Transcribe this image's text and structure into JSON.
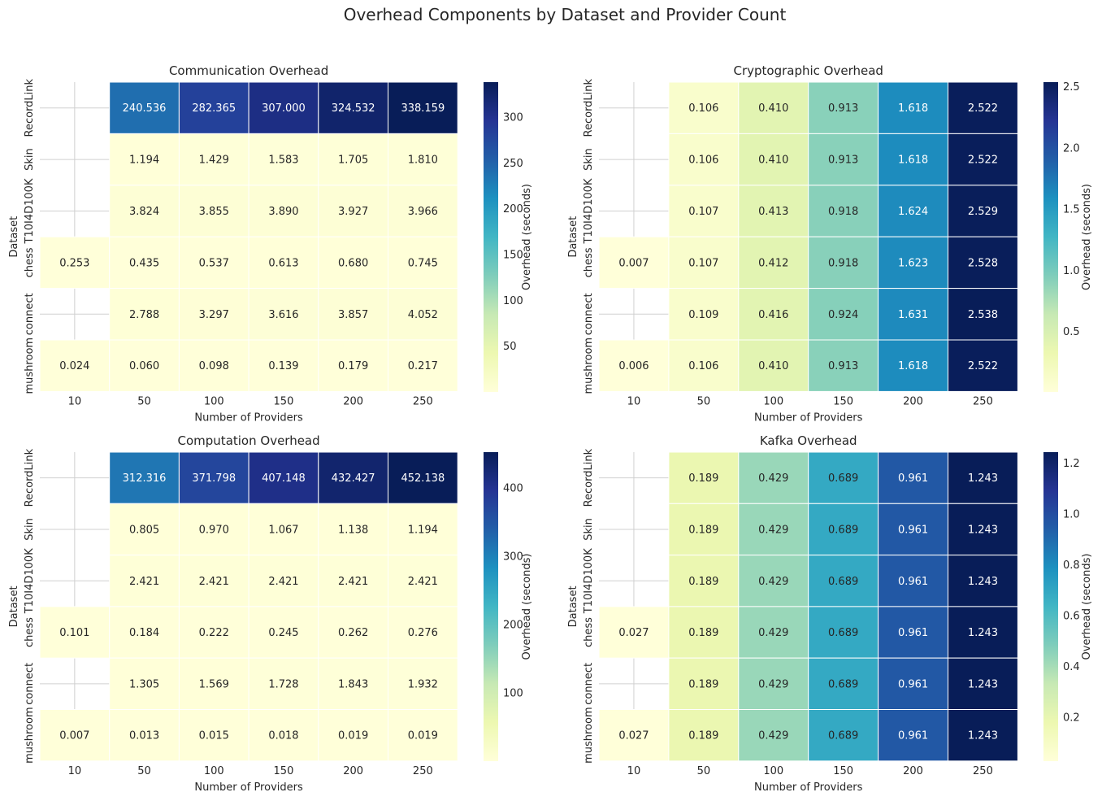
{
  "suptitle": "Overhead Components by Dataset and Provider Count",
  "chart_data": [
    {
      "type": "heatmap",
      "title": "Communication Overhead",
      "xlabel": "Number of Providers",
      "ylabel": "Dataset",
      "colorbar_label": "Overhead (seconds)",
      "colormap": "YlGnBu",
      "x": [
        "10",
        "50",
        "100",
        "150",
        "200",
        "250"
      ],
      "y": [
        "RecordLink",
        "Skin",
        "T10I4D100K",
        "chess",
        "connect",
        "mushroom"
      ],
      "values": [
        [
          null,
          240.536,
          282.365,
          307.0,
          324.532,
          338.159
        ],
        [
          null,
          1.194,
          1.429,
          1.583,
          1.705,
          1.81
        ],
        [
          null,
          3.824,
          3.855,
          3.89,
          3.927,
          3.966
        ],
        [
          0.253,
          0.435,
          0.537,
          0.613,
          0.68,
          0.745
        ],
        [
          null,
          2.788,
          3.297,
          3.616,
          3.857,
          4.052
        ],
        [
          0.024,
          0.06,
          0.098,
          0.139,
          0.179,
          0.217
        ]
      ],
      "vmin": 0.024,
      "vmax": 338.159,
      "colorbar_ticks": [
        50,
        100,
        150,
        200,
        250,
        300
      ]
    },
    {
      "type": "heatmap",
      "title": "Cryptographic Overhead",
      "xlabel": "Number of Providers",
      "ylabel": "Dataset",
      "colorbar_label": "Overhead (seconds)",
      "colormap": "YlGnBu",
      "x": [
        "10",
        "50",
        "100",
        "150",
        "200",
        "250"
      ],
      "y": [
        "RecordLink",
        "Skin",
        "T10I4D100K",
        "chess",
        "connect",
        "mushroom"
      ],
      "values": [
        [
          null,
          0.106,
          0.41,
          0.913,
          1.618,
          2.522
        ],
        [
          null,
          0.106,
          0.41,
          0.913,
          1.618,
          2.522
        ],
        [
          null,
          0.107,
          0.413,
          0.918,
          1.624,
          2.529
        ],
        [
          0.007,
          0.107,
          0.412,
          0.918,
          1.623,
          2.528
        ],
        [
          null,
          0.109,
          0.416,
          0.924,
          1.631,
          2.538
        ],
        [
          0.006,
          0.106,
          0.41,
          0.913,
          1.618,
          2.522
        ]
      ],
      "vmin": 0.006,
      "vmax": 2.538,
      "colorbar_ticks": [
        0.5,
        1.0,
        1.5,
        2.0,
        2.5
      ]
    },
    {
      "type": "heatmap",
      "title": "Computation Overhead",
      "xlabel": "Number of Providers",
      "ylabel": "Dataset",
      "colorbar_label": "Overhead (seconds)",
      "colormap": "YlGnBu",
      "x": [
        "10",
        "50",
        "100",
        "150",
        "200",
        "250"
      ],
      "y": [
        "RecordLink",
        "Skin",
        "T10I4D100K",
        "chess",
        "connect",
        "mushroom"
      ],
      "values": [
        [
          null,
          312.316,
          371.798,
          407.148,
          432.427,
          452.138
        ],
        [
          null,
          0.805,
          0.97,
          1.067,
          1.138,
          1.194
        ],
        [
          null,
          2.421,
          2.421,
          2.421,
          2.421,
          2.421
        ],
        [
          0.101,
          0.184,
          0.222,
          0.245,
          0.262,
          0.276
        ],
        [
          null,
          1.305,
          1.569,
          1.728,
          1.843,
          1.932
        ],
        [
          0.007,
          0.013,
          0.015,
          0.018,
          0.019,
          0.019
        ]
      ],
      "vmin": 0.007,
      "vmax": 452.138,
      "colorbar_ticks": [
        100,
        200,
        300,
        400
      ]
    },
    {
      "type": "heatmap",
      "title": "Kafka Overhead",
      "xlabel": "Number of Providers",
      "ylabel": "Dataset",
      "colorbar_label": "Overhead (seconds)",
      "colormap": "YlGnBu",
      "x": [
        "10",
        "50",
        "100",
        "150",
        "200",
        "250"
      ],
      "y": [
        "RecordLink",
        "Skin",
        "T10I4D100K",
        "chess",
        "connect",
        "mushroom"
      ],
      "values": [
        [
          null,
          0.189,
          0.429,
          0.689,
          0.961,
          1.243
        ],
        [
          null,
          0.189,
          0.429,
          0.689,
          0.961,
          1.243
        ],
        [
          null,
          0.189,
          0.429,
          0.689,
          0.961,
          1.243
        ],
        [
          0.027,
          0.189,
          0.429,
          0.689,
          0.961,
          1.243
        ],
        [
          null,
          0.189,
          0.429,
          0.689,
          0.961,
          1.243
        ],
        [
          0.027,
          0.189,
          0.429,
          0.689,
          0.961,
          1.243
        ]
      ],
      "vmin": 0.027,
      "vmax": 1.243,
      "colorbar_ticks": [
        0.2,
        0.4,
        0.6,
        0.8,
        1.0,
        1.2
      ]
    }
  ]
}
